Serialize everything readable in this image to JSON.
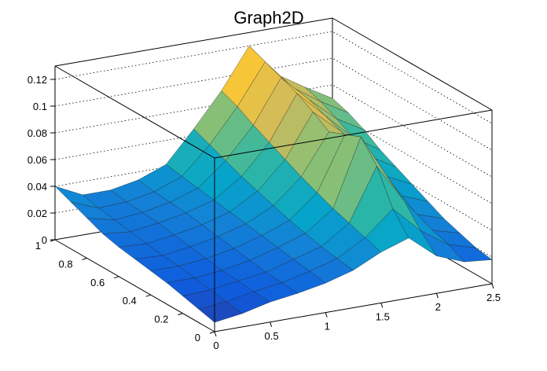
{
  "chart_data": {
    "type": "surface",
    "title": "Graph2D",
    "xlabel": "",
    "ylabel": "",
    "zlabel": "",
    "xlim": [
      0,
      2.5
    ],
    "ylim": [
      0,
      1
    ],
    "zlim": [
      0,
      0.13
    ],
    "x_ticks": [
      "0",
      "0.5",
      "1",
      "1.5",
      "2",
      "2.5"
    ],
    "y_ticks": [
      "0",
      "0.2",
      "0.4",
      "0.6",
      "0.8",
      "1"
    ],
    "z_ticks": [
      "0",
      "0.02",
      "0.04",
      "0.06",
      "0.08",
      "0.1",
      "0.12"
    ],
    "grid": true,
    "colormap": [
      "#352a87",
      "#0f5cdd",
      "#1481d6",
      "#06a4ca",
      "#2eb7a4",
      "#87bf77",
      "#d1bb59",
      "#fec832",
      "#f9fb0e"
    ],
    "x": [
      0,
      0.25,
      0.5,
      0.75,
      1.0,
      1.25,
      1.5,
      1.75,
      2.0,
      2.25,
      2.5
    ],
    "y": [
      0,
      0.1,
      0.2,
      0.3,
      0.4,
      0.5,
      0.6,
      0.7,
      0.8,
      0.9,
      1.0
    ],
    "z": [
      [
        0.007,
        0.01,
        0.015,
        0.018,
        0.022,
        0.028,
        0.038,
        0.045,
        0.028,
        0.02,
        0.018
      ],
      [
        0.01,
        0.012,
        0.016,
        0.019,
        0.024,
        0.03,
        0.042,
        0.06,
        0.04,
        0.026,
        0.02
      ],
      [
        0.013,
        0.014,
        0.017,
        0.02,
        0.026,
        0.032,
        0.046,
        0.085,
        0.055,
        0.03,
        0.024
      ],
      [
        0.016,
        0.016,
        0.018,
        0.022,
        0.028,
        0.035,
        0.05,
        0.1,
        0.065,
        0.035,
        0.028
      ],
      [
        0.018,
        0.018,
        0.02,
        0.024,
        0.03,
        0.038,
        0.055,
        0.095,
        0.07,
        0.042,
        0.034
      ],
      [
        0.02,
        0.019,
        0.022,
        0.026,
        0.032,
        0.042,
        0.06,
        0.09,
        0.075,
        0.05,
        0.04
      ],
      [
        0.022,
        0.021,
        0.024,
        0.028,
        0.034,
        0.046,
        0.066,
        0.098,
        0.08,
        0.058,
        0.046
      ],
      [
        0.025,
        0.023,
        0.026,
        0.03,
        0.036,
        0.05,
        0.072,
        0.105,
        0.085,
        0.065,
        0.052
      ],
      [
        0.03,
        0.025,
        0.027,
        0.031,
        0.038,
        0.055,
        0.078,
        0.11,
        0.09,
        0.072,
        0.06
      ],
      [
        0.035,
        0.027,
        0.028,
        0.032,
        0.04,
        0.06,
        0.085,
        0.115,
        0.092,
        0.078,
        0.066
      ],
      [
        0.04,
        0.03,
        0.03,
        0.034,
        0.042,
        0.065,
        0.09,
        0.12,
        0.095,
        0.082,
        0.07
      ]
    ]
  }
}
